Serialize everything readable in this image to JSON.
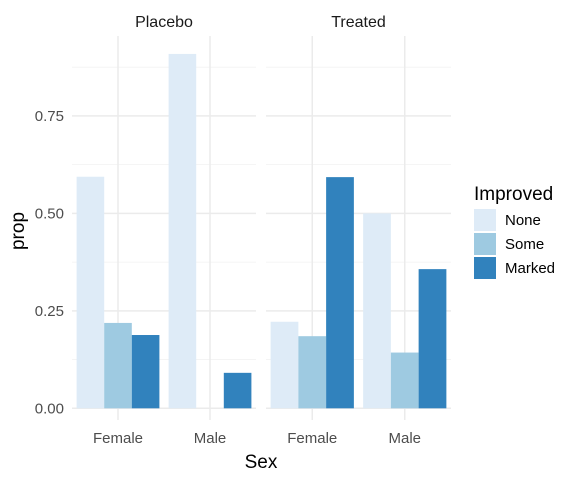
{
  "chart_data": {
    "type": "bar",
    "facets": [
      "Placebo",
      "Treated"
    ],
    "categories": [
      "Female",
      "Male"
    ],
    "series": [
      {
        "name": "None",
        "color": "#deebf7",
        "values": {
          "Placebo": [
            0.594,
            0.909
          ],
          "Treated": [
            0.222,
            0.5
          ]
        }
      },
      {
        "name": "Some",
        "color": "#9ecae1",
        "values": {
          "Placebo": [
            0.219,
            0.0
          ],
          "Treated": [
            0.185,
            0.143
          ]
        }
      },
      {
        "name": "Marked",
        "color": "#3182bd",
        "values": {
          "Placebo": [
            0.188,
            0.091
          ],
          "Treated": [
            0.593,
            0.357
          ]
        }
      }
    ],
    "xlabel": "Sex",
    "ylabel": "prop",
    "ylim": [
      -0.03,
      0.955
    ],
    "yticks": [
      0.0,
      0.25,
      0.5,
      0.75
    ],
    "ytick_labels": [
      "0.00",
      "0.25",
      "0.50",
      "0.75"
    ],
    "legend_title": "Improved",
    "legend_position": "right",
    "grid": true
  }
}
